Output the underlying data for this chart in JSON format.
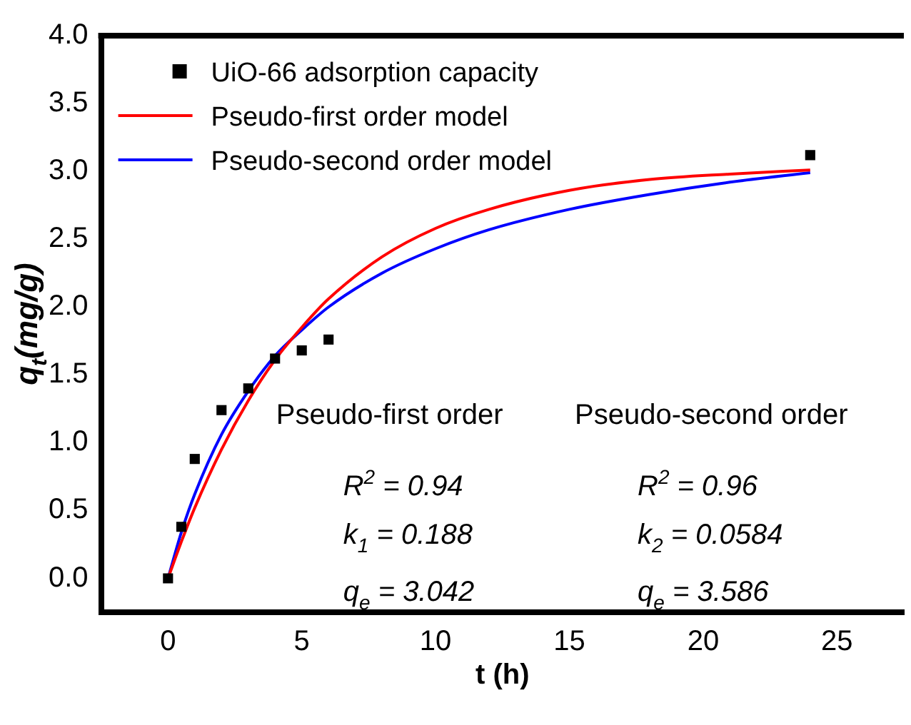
{
  "chart_data": {
    "type": "scatter",
    "xlabel": "t (h)",
    "ylabel": "q$_{t}$(mg/g)",
    "xlim": [
      -2.5,
      27.5
    ],
    "xticks": [
      0,
      5,
      10,
      15,
      20,
      25
    ],
    "ylim": [
      -0.25,
      4.0
    ],
    "yticks": [
      {
        "value": 0,
        "label": "0.0"
      },
      {
        "value": 0.5,
        "label": "0.5"
      },
      {
        "value": 1,
        "label": "1.0"
      },
      {
        "value": 1.5,
        "label": "1.5"
      },
      {
        "value": 2,
        "label": "2.0"
      },
      {
        "value": 2.5,
        "label": "2.5"
      },
      {
        "value": 3,
        "label": "3.0"
      },
      {
        "value": 3.5,
        "label": "3.5"
      },
      {
        "value": 4,
        "label": "4.0"
      }
    ],
    "grid": false,
    "legend": "top left",
    "series": [
      {
        "name": "UiO-66 adsorption capacity",
        "type": "scatter",
        "marker": "square",
        "color": "#000000",
        "x": [
          0,
          0.5,
          1,
          2,
          3,
          4,
          5,
          6,
          24
        ],
        "values": [
          0,
          0.38,
          0.88,
          1.24,
          1.4,
          1.62,
          1.68,
          1.76,
          3.12
        ]
      },
      {
        "name": "Pseudo-first order model",
        "type": "line",
        "marker": "none",
        "line_style": "solid",
        "color": "#ff0000",
        "x": [
          0,
          0.5,
          1,
          2,
          3,
          4,
          5,
          6,
          8,
          10,
          12,
          15,
          18,
          21,
          24
        ],
        "values": [
          0,
          0.27,
          0.52,
          0.95,
          1.31,
          1.61,
          1.85,
          2.06,
          2.37,
          2.58,
          2.72,
          2.86,
          2.94,
          2.98,
          3.01
        ]
      },
      {
        "name": "Pseudo-second order model",
        "type": "line",
        "marker": "none",
        "line_style": "solid",
        "color": "#0000ff",
        "x": [
          0,
          0.5,
          1,
          2,
          3,
          4,
          5,
          6,
          8,
          10,
          12,
          15,
          18,
          21,
          24
        ],
        "values": [
          0,
          0.34,
          0.62,
          1.06,
          1.38,
          1.64,
          1.83,
          2.0,
          2.25,
          2.43,
          2.57,
          2.72,
          2.83,
          2.92,
          2.99
        ]
      }
    ],
    "annotations": [
      "Pseudo-first order",
      "R$^{2}$ = 0.94",
      "k$_{1}$ = 0.188",
      "q$_{e}$ = 3.042",
      "Pseudo-second order",
      "R$^{2}$ = 0.96",
      "k$_{2}$ = 0.0584",
      "q$_{e}$ = 3.586"
    ]
  }
}
